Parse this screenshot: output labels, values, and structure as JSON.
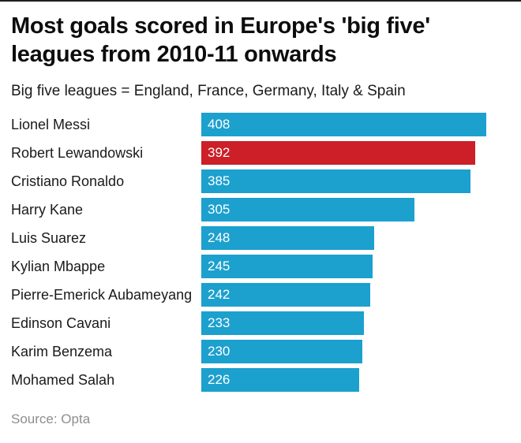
{
  "page": {
    "header": {
      "title": "Most goals scored in Europe's 'big five' leagues from 2010-11 onwards",
      "subtitle": "Big five leagues = England, France, Germany, Italy & Spain"
    },
    "footer": {
      "source": "Source: Opta"
    }
  },
  "colors": {
    "bar_default": "#1CA0CE",
    "bar_highlight": "#CC1F28",
    "value_text": "#FFFFFF",
    "title_text": "#0D0D0D",
    "source_text": "#8E8E8E"
  },
  "chart_data": {
    "type": "bar",
    "orientation": "horizontal",
    "title": "Most goals scored in Europe's 'big five' leagues from 2010-11 onwards",
    "subtitle": "Big five leagues = England, France, Germany, Italy & Spain",
    "source": "Source: Opta",
    "categories": [
      "Lionel Messi",
      "Robert Lewandowski",
      "Cristiano Ronaldo",
      "Harry Kane",
      "Luis Suarez",
      "Kylian Mbappe",
      "Pierre-Emerick Aubameyang",
      "Edinson Cavani",
      "Karim Benzema",
      "Mohamed Salah"
    ],
    "values": [
      408,
      392,
      385,
      305,
      248,
      245,
      242,
      233,
      230,
      226
    ],
    "highlight_category": "Robert Lewandowski",
    "highlight_index": 1,
    "xlim": [
      0,
      408
    ],
    "value_labels_shown": true,
    "gridlines": false,
    "axes_shown": false,
    "legend": "none"
  }
}
